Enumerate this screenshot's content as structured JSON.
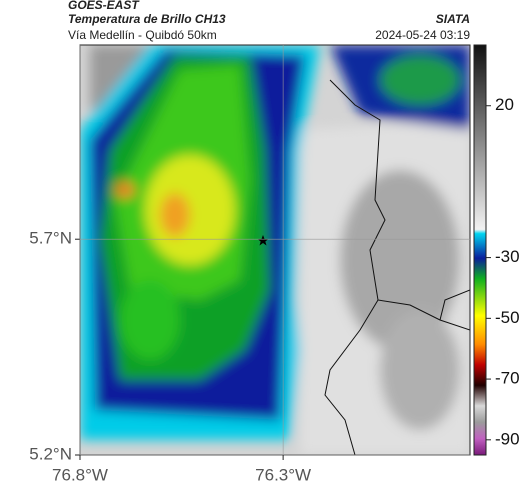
{
  "header": {
    "source": "GOES-EAST",
    "title": "Temperatura de Brillo CH13",
    "credit": "SIATA",
    "subtitle": "Vía Medellín - Quibdó 50km",
    "timestamp": "2024-05-24 03:19"
  },
  "map": {
    "ylim": [
      5.2,
      6.15
    ],
    "xlim": [
      -76.8,
      -75.84
    ],
    "yticks": [
      {
        "value": 5.7,
        "label": "5.7°N"
      },
      {
        "value": 5.2,
        "label": "5.2°N"
      }
    ],
    "xticks": [
      {
        "value": -76.8,
        "label": "76.8°W"
      },
      {
        "value": -76.3,
        "label": "76.3°W"
      }
    ],
    "grid": true
  },
  "colorbar": {
    "lim": [
      -95,
      40
    ],
    "ticks": [
      20,
      -30,
      -50,
      -70,
      -90
    ]
  }
}
